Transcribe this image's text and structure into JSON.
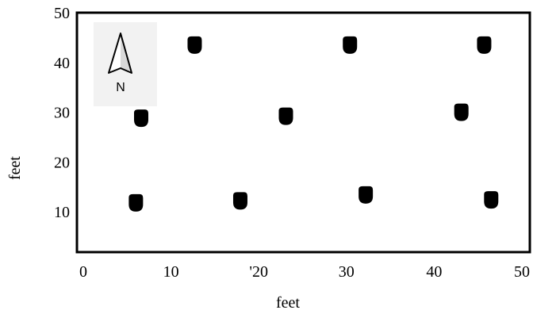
{
  "chart_data": {
    "type": "scatter",
    "title": "",
    "xlabel": "feet",
    "ylabel": "feet",
    "xlim": [
      0,
      50
    ],
    "ylim": [
      0,
      50
    ],
    "xticks": [
      "0",
      "10",
      "'20",
      "30",
      "40",
      "50"
    ],
    "yticks": [
      "10",
      "20",
      "30",
      "40",
      "50"
    ],
    "grid": false,
    "marker_color": "#000000",
    "points": [
      {
        "x": 12.7,
        "y": 43.5
      },
      {
        "x": 30.4,
        "y": 43.5
      },
      {
        "x": 45.7,
        "y": 43.5
      },
      {
        "x": 6.6,
        "y": 28.8
      },
      {
        "x": 23.1,
        "y": 29.2
      },
      {
        "x": 43.1,
        "y": 30.0
      },
      {
        "x": 6.0,
        "y": 11.8
      },
      {
        "x": 17.9,
        "y": 12.2
      },
      {
        "x": 32.2,
        "y": 13.4
      },
      {
        "x": 46.5,
        "y": 12.4
      }
    ]
  },
  "north_arrow": {
    "label": "N",
    "icon": "north-arrow-icon"
  }
}
